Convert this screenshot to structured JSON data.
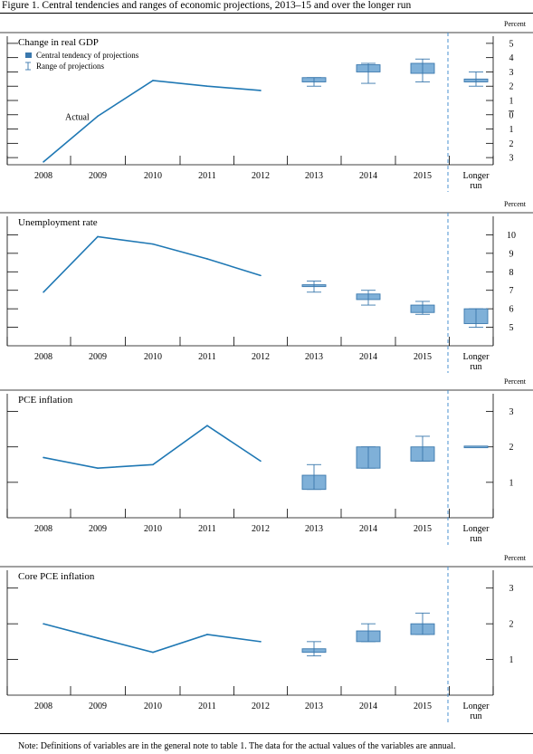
{
  "figure_title": "Figure 1. Central tendencies and ranges of economic projections, 2013–15 and over the longer run",
  "note": "Note: Definitions of variables are in the general note to table 1. The data for the actual values of the variables are annual.",
  "colors": {
    "line": "#1f78b4",
    "box_fill": "#7fb0d8",
    "box_edge": "#3a78ad",
    "divider": "#4a90d0"
  },
  "chart_data": [
    {
      "type": "line",
      "title": "Change in real GDP",
      "unit": "Percent",
      "categories": [
        "2008",
        "2009",
        "2010",
        "2011",
        "2012",
        "2013",
        "2014",
        "2015",
        "Longer run"
      ],
      "ylim": [
        -3.5,
        5.5
      ],
      "y_ticks": [
        -3,
        -2,
        -1,
        0,
        1,
        2,
        3,
        4,
        5
      ],
      "y_tick_labels": [
        "3",
        "2",
        "1",
        "0",
        "1",
        "2",
        "3",
        "4",
        "5"
      ],
      "legend": {
        "placement": "top-left",
        "central": "Central tendency of projections",
        "range": "Range of projections"
      },
      "annotation": "Actual",
      "actual": {
        "x": [
          "2008",
          "2009",
          "2010",
          "2011",
          "2012"
        ],
        "values": [
          -3.3,
          -0.1,
          2.4,
          2.0,
          1.7
        ]
      },
      "projections": [
        {
          "x": "2013",
          "central": [
            2.3,
            2.6
          ],
          "range": [
            2.0,
            2.6
          ]
        },
        {
          "x": "2014",
          "central": [
            3.0,
            3.5
          ],
          "range": [
            2.2,
            3.6
          ]
        },
        {
          "x": "2015",
          "central": [
            2.9,
            3.6
          ],
          "range": [
            2.3,
            3.9
          ]
        },
        {
          "x": "Longer run",
          "central": [
            2.3,
            2.5
          ],
          "range": [
            2.0,
            3.0
          ]
        }
      ]
    },
    {
      "type": "line",
      "title": "Unemployment rate",
      "unit": "Percent",
      "categories": [
        "2008",
        "2009",
        "2010",
        "2011",
        "2012",
        "2013",
        "2014",
        "2015",
        "Longer run"
      ],
      "ylim": [
        4,
        11
      ],
      "y_ticks": [
        5,
        6,
        7,
        8,
        9,
        10
      ],
      "y_tick_labels": [
        "5",
        "6",
        "7",
        "8",
        "9",
        "10"
      ],
      "actual": {
        "x": [
          "2008",
          "2009",
          "2010",
          "2011",
          "2012"
        ],
        "values": [
          6.9,
          9.9,
          9.5,
          8.7,
          7.8
        ]
      },
      "projections": [
        {
          "x": "2013",
          "central": [
            7.2,
            7.3
          ],
          "range": [
            6.9,
            7.5
          ]
        },
        {
          "x": "2014",
          "central": [
            6.5,
            6.8
          ],
          "range": [
            6.2,
            7.0
          ]
        },
        {
          "x": "2015",
          "central": [
            5.8,
            6.2
          ],
          "range": [
            5.7,
            6.4
          ]
        },
        {
          "x": "Longer run",
          "central": [
            5.2,
            6.0
          ],
          "range": [
            5.0,
            6.0
          ]
        }
      ]
    },
    {
      "type": "line",
      "title": "PCE inflation",
      "unit": "Percent",
      "categories": [
        "2008",
        "2009",
        "2010",
        "2011",
        "2012",
        "2013",
        "2014",
        "2015",
        "Longer run"
      ],
      "ylim": [
        0,
        3.5
      ],
      "y_ticks": [
        1,
        2,
        3
      ],
      "y_tick_labels": [
        "1",
        "2",
        "3"
      ],
      "actual": {
        "x": [
          "2008",
          "2009",
          "2010",
          "2011",
          "2012"
        ],
        "values": [
          1.7,
          1.4,
          1.5,
          2.6,
          1.6
        ]
      },
      "projections": [
        {
          "x": "2013",
          "central": [
            0.8,
            1.2
          ],
          "range": [
            0.8,
            1.5
          ]
        },
        {
          "x": "2014",
          "central": [
            1.4,
            2.0
          ],
          "range": [
            1.4,
            2.0
          ]
        },
        {
          "x": "2015",
          "central": [
            1.6,
            2.0
          ],
          "range": [
            1.6,
            2.3
          ]
        },
        {
          "x": "Longer run",
          "central": [
            2.0,
            2.0
          ],
          "range": [
            2.0,
            2.0
          ]
        }
      ]
    },
    {
      "type": "line",
      "title": "Core PCE inflation",
      "unit": "Percent",
      "categories": [
        "2008",
        "2009",
        "2010",
        "2011",
        "2012",
        "2013",
        "2014",
        "2015",
        "Longer run"
      ],
      "ylim": [
        0,
        3.5
      ],
      "y_ticks": [
        1,
        2,
        3
      ],
      "y_tick_labels": [
        "1",
        "2",
        "3"
      ],
      "actual": {
        "x": [
          "2008",
          "2009",
          "2010",
          "2011",
          "2012"
        ],
        "values": [
          2.0,
          1.6,
          1.2,
          1.7,
          1.5
        ]
      },
      "projections": [
        {
          "x": "2013",
          "central": [
            1.2,
            1.3
          ],
          "range": [
            1.1,
            1.5
          ]
        },
        {
          "x": "2014",
          "central": [
            1.5,
            1.8
          ],
          "range": [
            1.5,
            2.0
          ]
        },
        {
          "x": "2015",
          "central": [
            1.7,
            2.0
          ],
          "range": [
            1.7,
            2.3
          ]
        },
        {
          "x": "Longer run",
          "central": [],
          "range": []
        }
      ]
    }
  ]
}
